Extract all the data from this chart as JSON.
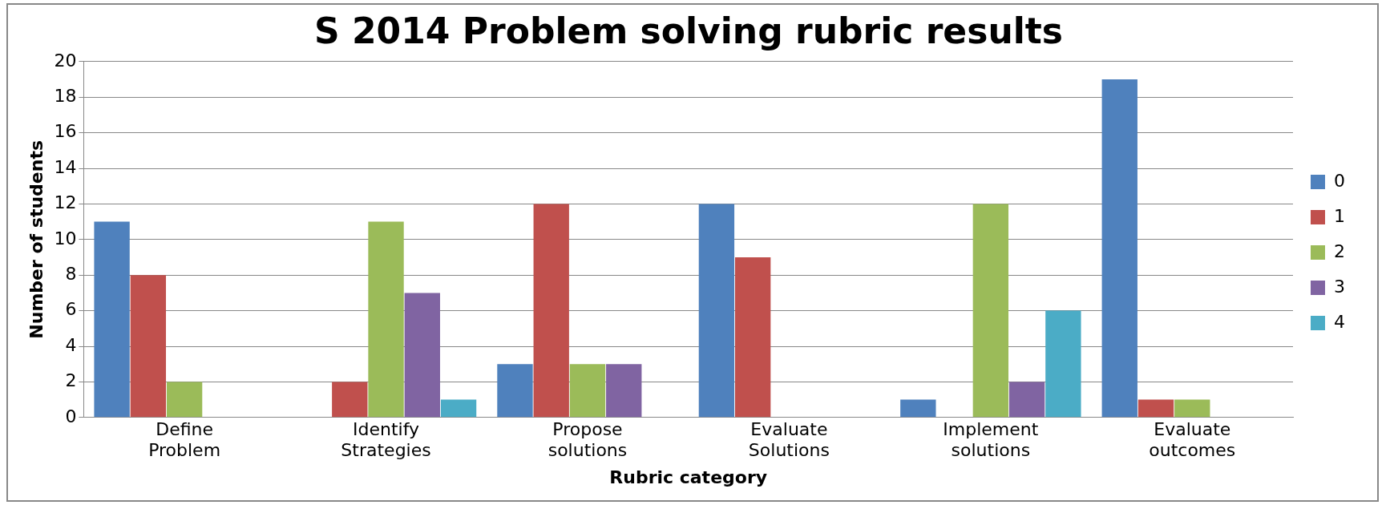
{
  "chart_data": {
    "type": "bar",
    "title": "S 2014 Problem solving rubric results",
    "xlabel": "Rubric category",
    "ylabel": "Number of students",
    "categories": [
      "Define Problem",
      "Identify Strategies",
      "Propose solutions",
      "Evaluate Solutions",
      "Implement solutions",
      "Evaluate outcomes"
    ],
    "series": [
      {
        "name": "0",
        "color": "#4f81bd",
        "values": [
          11,
          0,
          3,
          12,
          1,
          19
        ]
      },
      {
        "name": "1",
        "color": "#c0504d",
        "values": [
          8,
          2,
          12,
          9,
          0,
          1
        ]
      },
      {
        "name": "2",
        "color": "#9bbb59",
        "values": [
          2,
          11,
          3,
          0,
          12,
          1
        ]
      },
      {
        "name": "3",
        "color": "#8064a2",
        "values": [
          0,
          7,
          3,
          0,
          2,
          0
        ]
      },
      {
        "name": "4",
        "color": "#4bacc6",
        "values": [
          0,
          1,
          0,
          0,
          6,
          0
        ]
      }
    ],
    "ylim": [
      0,
      20
    ],
    "yticks": [
      0,
      2,
      4,
      6,
      8,
      10,
      12,
      14,
      16,
      18,
      20
    ],
    "grid": "y",
    "legend": "right"
  }
}
